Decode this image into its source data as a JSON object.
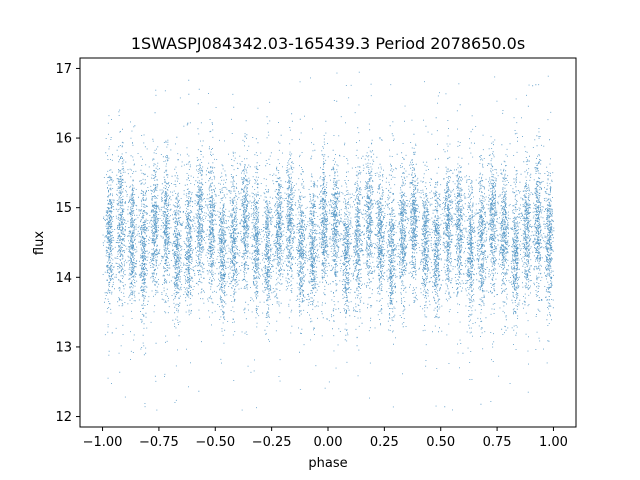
{
  "chart_data": {
    "type": "scatter",
    "title": "1SWASPJ084342.03-165439.3 Period 2078650.0s",
    "xlabel": "phase",
    "ylabel": "flux",
    "xlim": [
      -1.1,
      1.1
    ],
    "ylim": [
      11.85,
      17.15
    ],
    "x_ticks": [
      -1.0,
      -0.75,
      -0.5,
      -0.25,
      0.0,
      0.25,
      0.5,
      0.75,
      1.0
    ],
    "x_tick_labels": [
      "−1.00",
      "−0.75",
      "−0.50",
      "−0.25",
      "0.00",
      "0.25",
      "0.50",
      "0.75",
      "1.00"
    ],
    "y_ticks": [
      12,
      13,
      14,
      15,
      16,
      17
    ],
    "y_tick_labels": [
      "12",
      "13",
      "14",
      "15",
      "16",
      "17"
    ],
    "point_color": "#1f77b4",
    "grid": false,
    "series": [
      {
        "phase_range": [
          -1.0,
          1.0
        ],
        "flux_center": 14.6,
        "flux_spread_typical": [
          13.9,
          15.4
        ],
        "flux_extremes": [
          12.1,
          17.0
        ],
        "band_centers": [
          -0.97,
          -0.92,
          -0.87,
          -0.82,
          -0.77,
          -0.72,
          -0.67,
          -0.62,
          -0.57,
          -0.52,
          -0.47,
          -0.42,
          -0.37,
          -0.32,
          -0.27,
          -0.22,
          -0.17,
          -0.12,
          -0.07,
          -0.02,
          0.03,
          0.08,
          0.13,
          0.18,
          0.23,
          0.28,
          0.33,
          0.38,
          0.43,
          0.48,
          0.53,
          0.58,
          0.63,
          0.68,
          0.73,
          0.78,
          0.83,
          0.88,
          0.93,
          0.98
        ]
      }
    ]
  }
}
